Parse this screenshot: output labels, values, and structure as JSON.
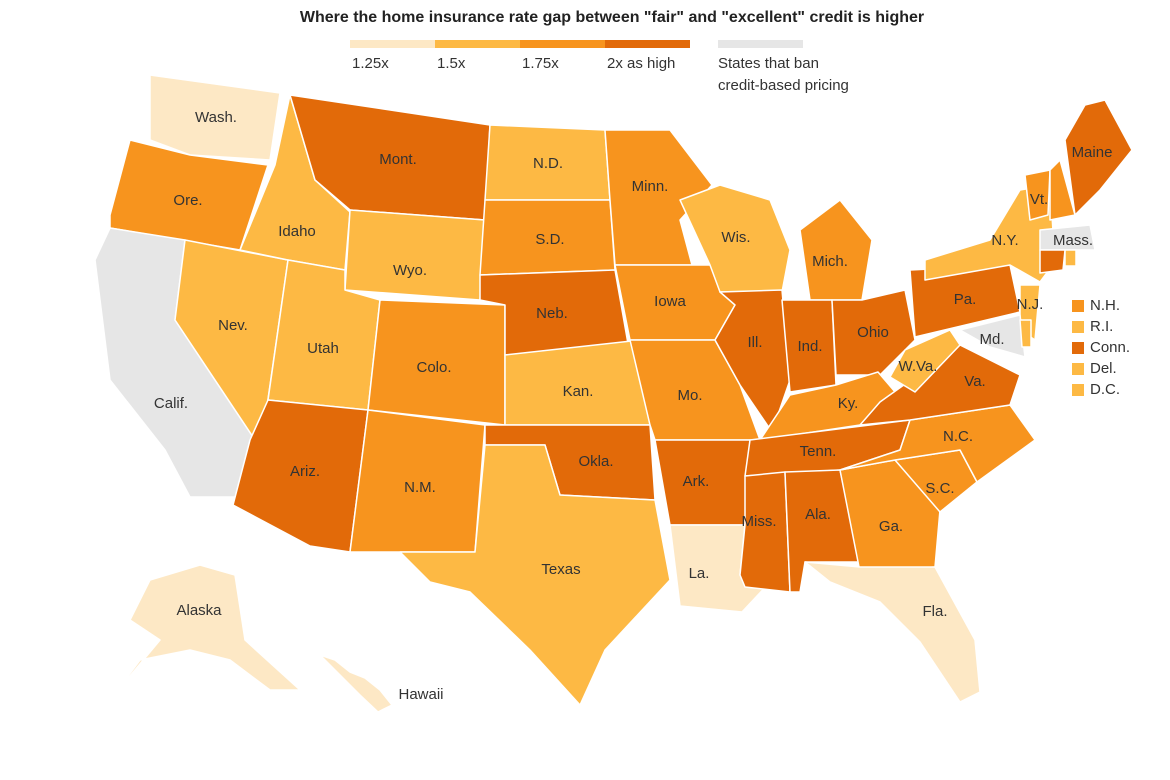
{
  "title": "Where the home insurance rate gap between \"fair\" and \"excellent\" credit is higher",
  "legend": {
    "items": [
      {
        "label": "1.25x",
        "color": "#fde8c5"
      },
      {
        "label": "1.5x",
        "color": "#fdb944"
      },
      {
        "label": "1.75x",
        "color": "#f7941e"
      },
      {
        "label": "2x as high",
        "color": "#e26a09"
      }
    ],
    "banned": {
      "lines": [
        "States that ban",
        "credit-based pricing"
      ],
      "color": "#e6e6e6"
    }
  },
  "states": [
    {
      "label": "Wash.",
      "color": "#fde8c5"
    },
    {
      "label": "Ore.",
      "color": "#f7941e"
    },
    {
      "label": "Calif.",
      "color": "#e6e6e6"
    },
    {
      "label": "Nev.",
      "color": "#fdb944"
    },
    {
      "label": "Idaho",
      "color": "#fdb944"
    },
    {
      "label": "Mont.",
      "color": "#e26a09"
    },
    {
      "label": "Wyo.",
      "color": "#fdb944"
    },
    {
      "label": "Utah",
      "color": "#fdb944"
    },
    {
      "label": "Colo.",
      "color": "#f7941e"
    },
    {
      "label": "Ariz.",
      "color": "#e26a09"
    },
    {
      "label": "N.M.",
      "color": "#f7941e"
    },
    {
      "label": "N.D.",
      "color": "#fdb944"
    },
    {
      "label": "S.D.",
      "color": "#f7941e"
    },
    {
      "label": "Neb.",
      "color": "#e26a09"
    },
    {
      "label": "Kan.",
      "color": "#fdb944"
    },
    {
      "label": "Okla.",
      "color": "#e26a09"
    },
    {
      "label": "Texas",
      "color": "#fdb944"
    },
    {
      "label": "Minn.",
      "color": "#f7941e"
    },
    {
      "label": "Iowa",
      "color": "#f7941e"
    },
    {
      "label": "Mo.",
      "color": "#f7941e"
    },
    {
      "label": "Ark.",
      "color": "#e26a09"
    },
    {
      "label": "La.",
      "color": "#fde8c5"
    },
    {
      "label": "Wis.",
      "color": "#fdb944"
    },
    {
      "label": "Ill.",
      "color": "#e26a09"
    },
    {
      "label": "Mich.",
      "color": "#f7941e"
    },
    {
      "label": "Ind.",
      "color": "#e26a09"
    },
    {
      "label": "Ohio",
      "color": "#e26a09"
    },
    {
      "label": "Ky.",
      "color": "#f7941e"
    },
    {
      "label": "Tenn.",
      "color": "#e26a09"
    },
    {
      "label": "Miss.",
      "color": "#e26a09"
    },
    {
      "label": "Ala.",
      "color": "#e26a09"
    },
    {
      "label": "Ga.",
      "color": "#f7941e"
    },
    {
      "label": "Fla.",
      "color": "#fde8c5"
    },
    {
      "label": "S.C.",
      "color": "#f7941e"
    },
    {
      "label": "N.C.",
      "color": "#f7941e"
    },
    {
      "label": "Va.",
      "color": "#e26a09"
    },
    {
      "label": "W.Va.",
      "color": "#fdb944"
    },
    {
      "label": "Pa.",
      "color": "#e26a09"
    },
    {
      "label": "N.Y.",
      "color": "#fdb944"
    },
    {
      "label": "N.J.",
      "color": "#fdb944"
    },
    {
      "label": "Md.",
      "color": "#e6e6e6"
    },
    {
      "label": "Vt.",
      "color": "#f7941e"
    },
    {
      "label": "Maine",
      "color": "#e26a09"
    },
    {
      "label": "Mass.",
      "color": "#e6e6e6"
    },
    {
      "label": "Alaska",
      "color": "#fde8c5"
    },
    {
      "label": "Hawaii",
      "color": "#fde8c5"
    }
  ],
  "small_states": [
    {
      "label": "N.H.",
      "color": "#f7941e"
    },
    {
      "label": "R.I.",
      "color": "#fdb944"
    },
    {
      "label": "Conn.",
      "color": "#e26a09"
    },
    {
      "label": "Del.",
      "color": "#fdb944"
    },
    {
      "label": "D.C.",
      "color": "#fdb944"
    }
  ]
}
